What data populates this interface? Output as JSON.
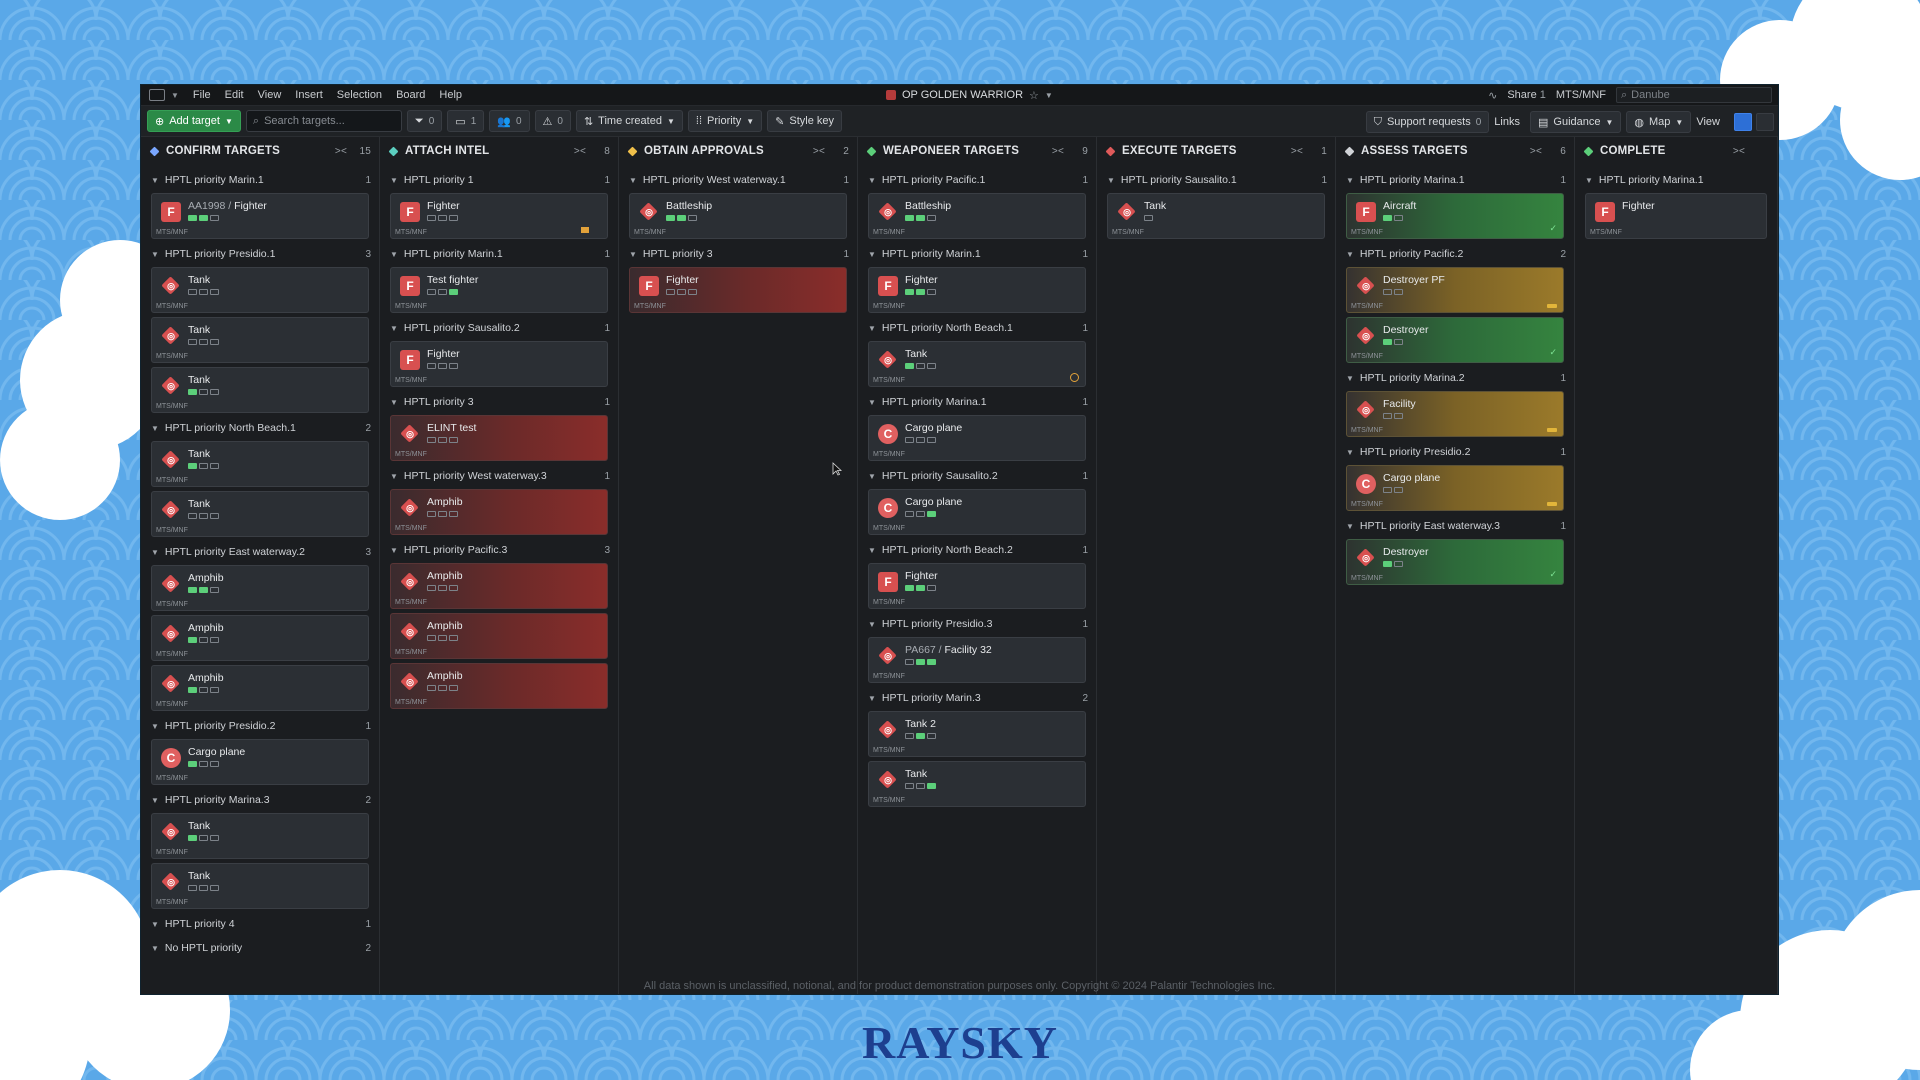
{
  "app": {
    "menu": [
      "File",
      "Edit",
      "View",
      "Insert",
      "Selection",
      "Board",
      "Help"
    ],
    "operation_name": "OP GOLDEN WARRIOR",
    "share_label": "Share",
    "share_count": "1",
    "org_label": "MTS/MNF",
    "global_search_placeholder": "Danube"
  },
  "toolbar": {
    "add_target": "Add target",
    "search_placeholder": "Search targets...",
    "filter_count": "0",
    "comments_count": "1",
    "people_count": "0",
    "warnings_count": "0",
    "sort_label": "Time created",
    "group_label": "Priority",
    "style_key": "Style key",
    "support_requests": "Support requests",
    "support_count": "0",
    "links": "Links",
    "guidance": "Guidance",
    "map": "Map",
    "view": "View"
  },
  "columns": [
    {
      "title": "CONFIRM TARGETS",
      "count": "15",
      "color": "#7aa7ff",
      "groups": [
        {
          "name": "HPTL priority Marin.1",
          "count": "1",
          "cards": [
            {
              "prefix": "AA1998 / ",
              "name": "Fighter",
              "type": "f",
              "pips": [
                1,
                1,
                0
              ],
              "style": "plain"
            }
          ]
        },
        {
          "name": "HPTL priority Presidio.1",
          "count": "3",
          "cards": [
            {
              "name": "Tank",
              "type": "d",
              "pips": [
                0,
                0,
                0
              ],
              "style": "plain"
            },
            {
              "name": "Tank",
              "type": "d",
              "pips": [
                0,
                0,
                0
              ],
              "style": "plain"
            },
            {
              "name": "Tank",
              "type": "d",
              "pips": [
                1,
                0,
                0
              ],
              "style": "plain"
            }
          ]
        },
        {
          "name": "HPTL priority North Beach.1",
          "count": "2",
          "cards": [
            {
              "name": "Tank",
              "type": "d",
              "pips": [
                1,
                0,
                0
              ],
              "style": "plain"
            },
            {
              "name": "Tank",
              "type": "d",
              "pips": [
                0,
                0,
                0
              ],
              "style": "plain"
            }
          ]
        },
        {
          "name": "HPTL priority East waterway.2",
          "count": "3",
          "cards": [
            {
              "name": "Amphib",
              "type": "d",
              "pips": [
                1,
                1,
                0
              ],
              "style": "plain"
            },
            {
              "name": "Amphib",
              "type": "d",
              "pips": [
                1,
                0,
                0
              ],
              "style": "plain"
            },
            {
              "name": "Amphib",
              "type": "d",
              "pips": [
                1,
                0,
                0
              ],
              "style": "plain"
            }
          ]
        },
        {
          "name": "HPTL priority Presidio.2",
          "count": "1",
          "cards": [
            {
              "name": "Cargo plane",
              "type": "c",
              "pips": [
                1,
                0,
                0
              ],
              "style": "plain"
            }
          ]
        },
        {
          "name": "HPTL priority Marina.3",
          "count": "2",
          "cards": [
            {
              "name": "Tank",
              "type": "d",
              "pips": [
                1,
                0,
                0
              ],
              "style": "plain"
            },
            {
              "name": "Tank",
              "type": "d",
              "pips": [
                0,
                0,
                0
              ],
              "style": "plain"
            }
          ]
        },
        {
          "name": "HPTL priority 4",
          "count": "1",
          "cards": []
        },
        {
          "name": "No HPTL priority",
          "count": "2",
          "cards": []
        }
      ]
    },
    {
      "title": "ATTACH INTEL",
      "count": "8",
      "color": "#5ccfc0",
      "groups": [
        {
          "name": "HPTL priority 1",
          "count": "1",
          "cards": [
            {
              "name": "Fighter",
              "type": "f",
              "pips": [
                0,
                0,
                0
              ],
              "style": "plain",
              "flag": "msg"
            }
          ]
        },
        {
          "name": "HPTL priority Marin.1",
          "count": "1",
          "cards": [
            {
              "name": "Test fighter",
              "type": "f",
              "pips": [
                0,
                0,
                1
              ],
              "style": "plain"
            }
          ]
        },
        {
          "name": "HPTL priority Sausalito.2",
          "count": "1",
          "cards": [
            {
              "name": "Fighter",
              "type": "f",
              "pips": [
                0,
                0,
                0
              ],
              "style": "plain"
            }
          ]
        },
        {
          "name": "HPTL priority 3",
          "count": "1",
          "cards": [
            {
              "name": "ELINT test",
              "type": "d",
              "pips": [
                0,
                0,
                0
              ],
              "style": "red"
            }
          ]
        },
        {
          "name": "HPTL priority West waterway.3",
          "count": "1",
          "cards": [
            {
              "name": "Amphib",
              "type": "d",
              "pips": [
                0,
                0,
                0
              ],
              "style": "red"
            }
          ]
        },
        {
          "name": "HPTL priority Pacific.3",
          "count": "3",
          "cards": [
            {
              "name": "Amphib",
              "type": "d",
              "pips": [
                0,
                0,
                0
              ],
              "style": "red"
            },
            {
              "name": "Amphib",
              "type": "d",
              "pips": [
                0,
                0,
                0
              ],
              "style": "red"
            },
            {
              "name": "Amphib",
              "type": "d",
              "pips": [
                0,
                0,
                0
              ],
              "style": "red"
            }
          ]
        }
      ]
    },
    {
      "title": "OBTAIN APPROVALS",
      "count": "2",
      "color": "#f0c04a",
      "groups": [
        {
          "name": "HPTL priority West waterway.1",
          "count": "1",
          "cards": [
            {
              "name": "Battleship",
              "type": "d",
              "pips": [
                1,
                1,
                0
              ],
              "style": "plain"
            }
          ]
        },
        {
          "name": "HPTL priority 3",
          "count": "1",
          "cards": [
            {
              "name": "Fighter",
              "type": "f",
              "pips": [
                0,
                0,
                0
              ],
              "style": "red"
            }
          ]
        }
      ]
    },
    {
      "title": "WEAPONEER TARGETS",
      "count": "9",
      "color": "#5ccf7a",
      "groups": [
        {
          "name": "HPTL priority Pacific.1",
          "count": "1",
          "cards": [
            {
              "name": "Battleship",
              "type": "d",
              "pips": [
                1,
                1,
                0
              ],
              "style": "plain"
            }
          ]
        },
        {
          "name": "HPTL priority Marin.1",
          "count": "1",
          "cards": [
            {
              "name": "Fighter",
              "type": "f",
              "pips": [
                1,
                1,
                0
              ],
              "style": "plain"
            }
          ]
        },
        {
          "name": "HPTL priority North Beach.1",
          "count": "1",
          "cards": [
            {
              "name": "Tank",
              "type": "d",
              "pips": [
                1,
                0,
                0
              ],
              "style": "plain",
              "flag": "circle"
            }
          ]
        },
        {
          "name": "HPTL priority Marina.1",
          "count": "1",
          "cards": [
            {
              "name": "Cargo plane",
              "type": "c",
              "pips": [
                0,
                0,
                0
              ],
              "style": "plain"
            }
          ]
        },
        {
          "name": "HPTL priority Sausalito.2",
          "count": "1",
          "cards": [
            {
              "name": "Cargo plane",
              "type": "c",
              "pips": [
                0,
                0,
                1
              ],
              "style": "plain"
            }
          ]
        },
        {
          "name": "HPTL priority North Beach.2",
          "count": "1",
          "cards": [
            {
              "name": "Fighter",
              "type": "f",
              "pips": [
                1,
                1,
                0
              ],
              "style": "plain"
            }
          ]
        },
        {
          "name": "HPTL priority Presidio.3",
          "count": "1",
          "cards": [
            {
              "prefix": "PA667 / ",
              "name": "Facility 32",
              "type": "d",
              "pips": [
                0,
                1,
                1
              ],
              "style": "plain"
            }
          ]
        },
        {
          "name": "HPTL priority Marin.3",
          "count": "2",
          "cards": [
            {
              "name": "Tank 2",
              "type": "d",
              "pips": [
                0,
                1,
                0
              ],
              "style": "plain"
            },
            {
              "name": "Tank",
              "type": "d",
              "pips": [
                0,
                0,
                1
              ],
              "style": "plain"
            }
          ]
        }
      ]
    },
    {
      "title": "EXECUTE TARGETS",
      "count": "1",
      "color": "#e05a5a",
      "groups": [
        {
          "name": "HPTL priority Sausalito.1",
          "count": "1",
          "cards": [
            {
              "name": "Tank",
              "type": "d",
              "pips": [
                0
              ],
              "style": "plain"
            }
          ]
        }
      ]
    },
    {
      "title": "ASSESS TARGETS",
      "count": "6",
      "color": "#d0d3d7",
      "groups": [
        {
          "name": "HPTL priority Marina.1",
          "count": "1",
          "cards": [
            {
              "name": "Aircraft",
              "type": "f",
              "pips": [
                1,
                0
              ],
              "style": "green",
              "flag": "check"
            }
          ]
        },
        {
          "name": "HPTL priority Pacific.2",
          "count": "2",
          "cards": [
            {
              "name": "Destroyer PF",
              "type": "d",
              "pips": [
                0,
                0
              ],
              "style": "amber",
              "flag": "amber"
            },
            {
              "name": "Destroyer",
              "type": "d",
              "pips": [
                1,
                0
              ],
              "style": "green",
              "flag": "check"
            }
          ]
        },
        {
          "name": "HPTL priority Marina.2",
          "count": "1",
          "cards": [
            {
              "name": "Facility",
              "type": "d",
              "pips": [
                0,
                0
              ],
              "style": "amber",
              "flag": "amber"
            }
          ]
        },
        {
          "name": "HPTL priority Presidio.2",
          "count": "1",
          "cards": [
            {
              "name": "Cargo plane",
              "type": "c",
              "pips": [
                0,
                0
              ],
              "style": "amber",
              "flag": "amber"
            }
          ]
        },
        {
          "name": "HPTL priority East waterway.3",
          "count": "1",
          "cards": [
            {
              "name": "Destroyer",
              "type": "d",
              "pips": [
                1,
                0
              ],
              "style": "green",
              "flag": "check"
            }
          ]
        }
      ]
    },
    {
      "title": "COMPLETE",
      "count": "",
      "color": "#5ccf7a",
      "groups": [
        {
          "name": "HPTL priority Marina.1",
          "count": "",
          "cards": [
            {
              "name": "Fighter",
              "type": "f",
              "pips": [],
              "style": "plain"
            }
          ]
        }
      ]
    }
  ],
  "card_footer": "MTS/MNF",
  "disclaimer": "All data shown is unclassified, notional, and for product demonstration purposes only. Copyright © 2024 Palantir Technologies Inc.",
  "brand": "RAYSKY"
}
